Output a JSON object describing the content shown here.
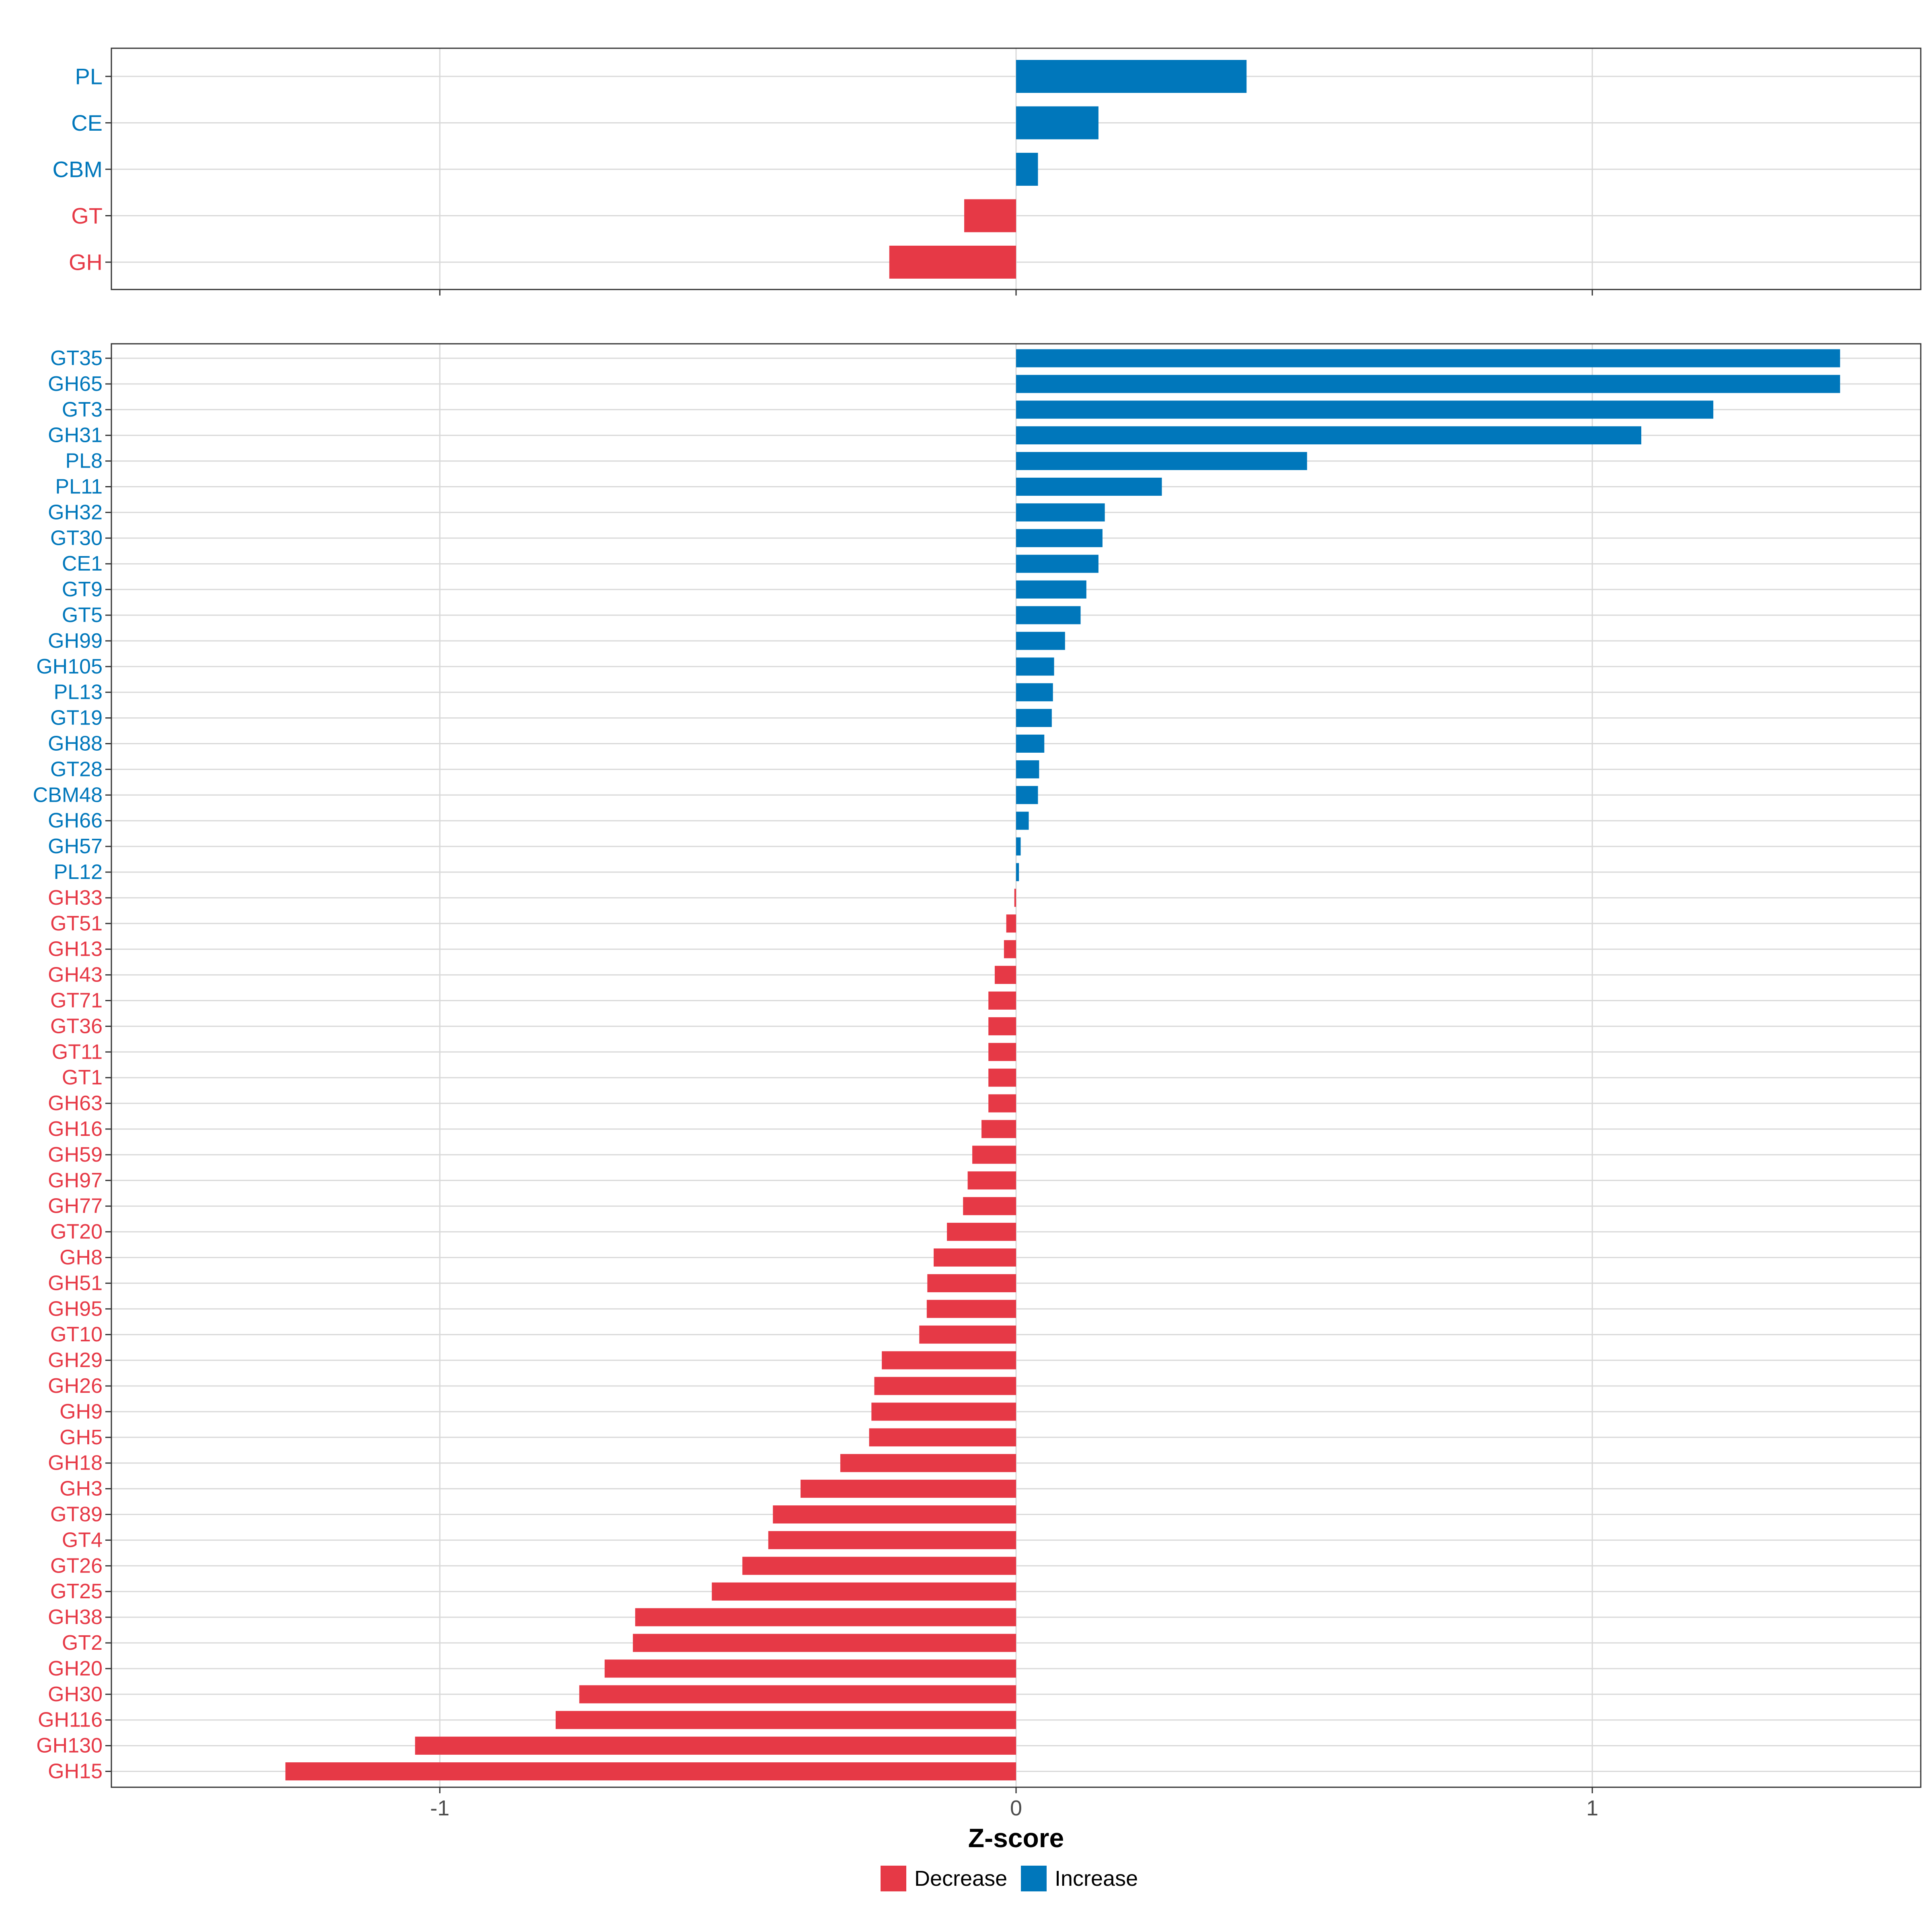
{
  "colors": {
    "increase": "#0077bb",
    "decrease": "#e63946",
    "grid": "#d9d9d9",
    "axis": "#333333",
    "tick_text": "#4d4d4d"
  },
  "chart_data": [
    {
      "type": "bar",
      "orientation": "horizontal",
      "panel": "top",
      "categories": [
        "PL",
        "CE",
        "CBM",
        "GT",
        "GH"
      ],
      "values": [
        0.4,
        0.143,
        0.038,
        -0.09,
        -0.22
      ],
      "xlim": [
        -1.57,
        1.57
      ],
      "xticks": [
        -1,
        0,
        1
      ],
      "xtick_labels": [
        "-1",
        "0",
        "1"
      ]
    },
    {
      "type": "bar",
      "orientation": "horizontal",
      "panel": "bottom",
      "categories": [
        "GT35",
        "GH65",
        "GT3",
        "GH31",
        "PL8",
        "PL11",
        "GH32",
        "GT30",
        "CE1",
        "GT9",
        "GT5",
        "GH99",
        "GH105",
        "PL13",
        "GT19",
        "GH88",
        "GT28",
        "CBM48",
        "GH66",
        "GH57",
        "PL12",
        "GH33",
        "GT51",
        "GH13",
        "GH43",
        "GT71",
        "GT36",
        "GT11",
        "GT1",
        "GH63",
        "GH16",
        "GH59",
        "GH97",
        "GH77",
        "GT20",
        "GH8",
        "GH51",
        "GH95",
        "GT10",
        "GH29",
        "GH26",
        "GH9",
        "GH5",
        "GH18",
        "GH3",
        "GT89",
        "GT4",
        "GT26",
        "GT25",
        "GH38",
        "GT2",
        "GH20",
        "GH30",
        "GH116",
        "GH130",
        "GH15"
      ],
      "values": [
        1.43,
        1.43,
        1.21,
        1.085,
        0.505,
        0.253,
        0.154,
        0.15,
        0.143,
        0.122,
        0.112,
        0.085,
        0.066,
        0.064,
        0.062,
        0.049,
        0.04,
        0.038,
        0.022,
        0.008,
        0.005,
        -0.003,
        -0.017,
        -0.021,
        -0.037,
        -0.048,
        -0.048,
        -0.048,
        -0.048,
        -0.048,
        -0.06,
        -0.076,
        -0.084,
        -0.092,
        -0.12,
        -0.143,
        -0.154,
        -0.155,
        -0.168,
        -0.233,
        -0.246,
        -0.251,
        -0.255,
        -0.305,
        -0.374,
        -0.422,
        -0.43,
        -0.475,
        -0.528,
        -0.661,
        -0.665,
        -0.714,
        -0.758,
        -0.799,
        -1.043,
        -1.268
      ],
      "xlim": [
        -1.57,
        1.57
      ],
      "xticks": [
        -1,
        0,
        1
      ],
      "xtick_labels": [
        "-1",
        "0",
        "1"
      ],
      "xlabel": "Z-score"
    }
  ],
  "legend": {
    "items": [
      {
        "label": "Decrease",
        "color": "#e63946"
      },
      {
        "label": "Increase",
        "color": "#0077bb"
      }
    ],
    "placement": "bottom"
  }
}
